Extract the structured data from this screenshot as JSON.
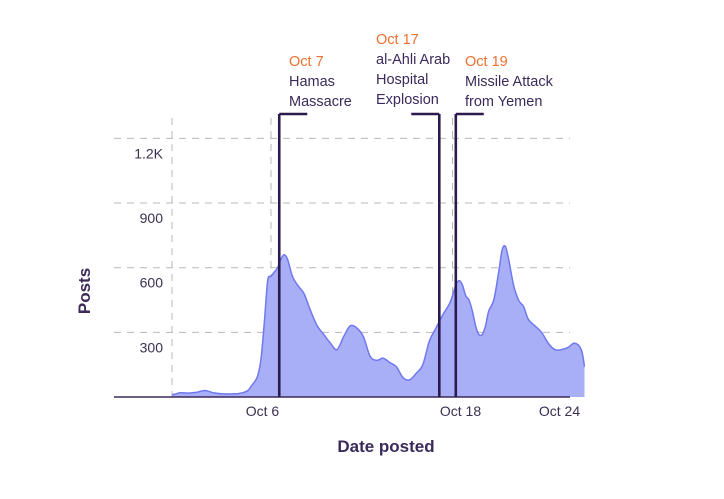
{
  "chart_data": {
    "type": "area",
    "title": "",
    "xlabel": "Date posted",
    "ylabel": "Posts",
    "x_start": "Oct 1",
    "x_end": "Oct 25",
    "ylim": [
      0,
      1300
    ],
    "x_ticks": [
      {
        "label": "Oct 6"
      },
      {
        "label": "Oct 18"
      },
      {
        "label": "Oct 24"
      }
    ],
    "y_ticks": [
      {
        "value": 300,
        "label": "300"
      },
      {
        "value": 600,
        "label": "600"
      },
      {
        "value": 900,
        "label": "900"
      },
      {
        "value": 1200,
        "label": "1.2K"
      }
    ],
    "grid": true,
    "area_color": "#a9aff7",
    "line_color": "#6f78ee",
    "series": [
      {
        "x": [
          0,
          0.25,
          0.5,
          1,
          1.5,
          2,
          2.5,
          3,
          3.5,
          4,
          4.3,
          4.6,
          4.8,
          5,
          5.2,
          5.4,
          5.6,
          5.8,
          6,
          6.2,
          6.4,
          6.6,
          6.8,
          7,
          7.3,
          7.6,
          8,
          8.4,
          8.8,
          9.2,
          9.6,
          10,
          10.4,
          10.8,
          11.2,
          11.6,
          12,
          12.4,
          12.8,
          13.2,
          13.6,
          14,
          14.4,
          14.8,
          15.2,
          15.6,
          16,
          16.4,
          16.8,
          17,
          17.2,
          17.4,
          17.6,
          17.8,
          18,
          18.2,
          18.4,
          18.6,
          18.8,
          19,
          19.2,
          19.5,
          19.8,
          20,
          20.2,
          20.4,
          20.7,
          21,
          21.3,
          21.6,
          22,
          22.4,
          22.8,
          23.2,
          23.6,
          24,
          24.4,
          24.8,
          25
        ],
        "values": [
          10,
          15,
          20,
          18,
          22,
          30,
          20,
          15,
          14,
          16,
          20,
          30,
          50,
          70,
          100,
          180,
          350,
          540,
          560,
          580,
          600,
          640,
          660,
          640,
          560,
          520,
          480,
          400,
          330,
          290,
          250,
          220,
          280,
          330,
          320,
          280,
          190,
          170,
          180,
          160,
          140,
          90,
          80,
          110,
          150,
          260,
          320,
          380,
          430,
          470,
          520,
          540,
          520,
          470,
          450,
          400,
          330,
          290,
          290,
          330,
          400,
          450,
          580,
          680,
          700,
          640,
          520,
          450,
          420,
          360,
          330,
          300,
          250,
          220,
          220,
          230,
          250,
          220,
          140
        ]
      }
    ],
    "annotations": [
      {
        "date_label": "Oct 7",
        "lines": [
          "Hamas",
          "Massacre"
        ]
      },
      {
        "date_label": "Oct 17",
        "lines": [
          "al-Ahli Arab",
          "Hospital",
          "Explosion"
        ]
      },
      {
        "date_label": "Oct 19",
        "lines": [
          "Missile Attack",
          "from Yemen"
        ]
      }
    ]
  }
}
